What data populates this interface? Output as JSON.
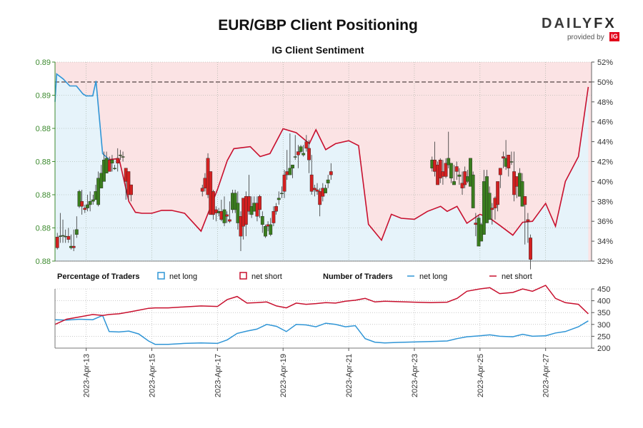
{
  "header": {
    "title": "EUR/GBP Client Positioning",
    "subtitle": "IG Client Sentiment",
    "logo_text_a": "DAILY",
    "logo_text_b": "FX",
    "logo_by": "provided by",
    "logo_ig": "IG"
  },
  "legend": {
    "pct_heading": "Percentage of Traders",
    "pct_long": "net long",
    "pct_short": "net short",
    "num_heading": "Number of Traders",
    "num_long": "net long",
    "num_short": "net short"
  },
  "colors": {
    "long_line": "#2f95d6",
    "short_line": "#c8102e",
    "long_fill": "#e6f3fa",
    "short_fill": "#fbe3e4",
    "bull_candle": "#3a7d1e",
    "bear_candle": "#d32020",
    "price_axis": "#3c8a2e",
    "dashed_line": "#7a6a6a"
  },
  "chart_data": [
    {
      "type": "candlestick",
      "title": "EUR/GBP Client Positioning",
      "subtitle": "IG Client Sentiment",
      "x_ticks": [
        "2023-Apr-13",
        "2023-Apr-15",
        "2023-Apr-17",
        "2023-Apr-19",
        "2023-Apr-21",
        "2023-Apr-23",
        "2023-Apr-25",
        "2023-Apr-27"
      ],
      "price_axis_left": {
        "ticks": [
          "0.88",
          "0.88",
          "0.88",
          "0.88",
          "0.88",
          "0.89",
          "0.89"
        ],
        "range": [
          0.8736,
          0.8856
        ]
      },
      "percent_axis_right": {
        "ticks": [
          "32%",
          "34%",
          "36%",
          "38%",
          "40%",
          "42%",
          "44%",
          "46%",
          "48%",
          "50%",
          "52%"
        ],
        "range": [
          32,
          52
        ],
        "reference_line": 50
      },
      "candles": {
        "days": [
          12.12,
          12.21,
          12.29,
          12.37,
          12.46,
          12.54,
          12.62,
          12.71,
          12.79,
          12.87,
          12.96,
          13.04,
          13.12,
          13.21,
          13.29,
          13.37,
          13.46,
          13.54,
          13.62,
          13.71,
          13.79,
          13.87,
          13.96,
          14.04,
          14.12,
          14.21,
          14.29,
          14.37,
          16.54,
          16.62,
          16.71,
          16.79,
          16.87,
          16.96,
          17.04,
          17.12,
          17.21,
          17.29,
          17.37,
          17.46,
          17.54,
          17.62,
          17.71,
          17.79,
          17.87,
          17.96,
          18.04,
          18.12,
          18.21,
          18.29,
          18.37,
          18.46,
          18.54,
          18.62,
          18.71,
          18.79,
          18.87,
          18.96,
          19.04,
          19.12,
          19.21,
          19.29,
          19.37,
          19.46,
          19.54,
          19.62,
          19.71,
          19.79,
          19.87,
          19.96,
          20.04,
          20.12,
          20.21,
          20.29,
          20.37,
          20.46,
          23.54,
          23.62,
          23.71,
          23.79,
          23.87,
          23.96,
          24.04,
          24.12,
          24.21,
          24.29,
          24.37,
          24.46,
          24.54,
          24.62,
          24.71,
          24.79,
          24.87,
          24.96,
          25.04,
          25.12,
          25.21,
          25.29,
          25.37,
          25.46,
          25.54,
          25.62,
          25.71,
          25.79,
          25.87,
          25.96,
          26.04,
          26.12,
          26.21,
          26.29,
          26.37,
          26.46,
          26.54
        ],
        "open": [
          0.87505,
          0.87512,
          0.87515,
          0.8751,
          0.8751,
          0.8744,
          0.8745,
          0.8752,
          0.8769,
          0.8772,
          0.8768,
          0.8768,
          0.877,
          0.8772,
          0.8773,
          0.877,
          0.878,
          0.8784,
          0.8789,
          0.8797,
          0.8795,
          0.8792,
          0.8798,
          0.88,
          0.8799,
          0.8792,
          0.879,
          0.8782,
          0.878,
          0.8786,
          0.8798,
          0.879,
          0.8778,
          0.8767,
          0.8765,
          0.8766,
          0.8759,
          0.8764,
          0.8761,
          0.8767,
          0.8767,
          0.8759,
          0.8763,
          0.8774,
          0.8775,
          0.8775,
          0.8764,
          0.8766,
          0.8771,
          0.8775,
          0.8758,
          0.8751,
          0.8758,
          0.8752,
          0.8766,
          0.8769,
          0.8773,
          0.8777,
          0.8788,
          0.879,
          0.8788,
          0.8792,
          0.8799,
          0.8802,
          0.8802,
          0.88,
          0.8808,
          0.8804,
          0.8788,
          0.878,
          0.8779,
          0.8778,
          0.878,
          0.8777,
          0.8783,
          0.879,
          0.8792,
          0.8797,
          0.8794,
          0.8797,
          0.879,
          0.8795,
          0.8794,
          0.8786,
          0.8782,
          0.8793,
          0.8787,
          0.8783,
          0.879,
          0.8784,
          0.8781,
          0.8768,
          0.8759,
          0.8745,
          0.8748,
          0.8752,
          0.8759,
          0.8761,
          0.8768,
          0.8774,
          0.8784,
          0.8792,
          0.8799,
          0.8793,
          0.88,
          0.8796,
          0.879,
          0.8787,
          0.8775,
          0.8769,
          0.8775,
          0.8761,
          0.875
        ],
        "close": [
          0.8744,
          0.87512,
          0.87515,
          0.8751,
          0.8749,
          0.8745,
          0.8744,
          0.8755,
          0.8778,
          0.8769,
          0.8767,
          0.877,
          0.8772,
          0.8773,
          0.8778,
          0.8786,
          0.8789,
          0.8797,
          0.8798,
          0.879,
          0.8797,
          0.8792,
          0.8795,
          0.88,
          0.8799,
          0.8784,
          0.8776,
          0.8776,
          0.8778,
          0.878,
          0.8776,
          0.8764,
          0.8764,
          0.8765,
          0.8766,
          0.8761,
          0.8767,
          0.8763,
          0.876,
          0.8777,
          0.8777,
          0.8771,
          0.8751,
          0.8757,
          0.8758,
          0.8766,
          0.8769,
          0.8771,
          0.8763,
          0.8767,
          0.8763,
          0.8757,
          0.8757,
          0.8758,
          0.8759,
          0.8766,
          0.8774,
          0.8777,
          0.8778,
          0.8788,
          0.8792,
          0.8794,
          0.8799,
          0.88,
          0.8805,
          0.8801,
          0.8804,
          0.8797,
          0.8778,
          0.8779,
          0.8778,
          0.877,
          0.8775,
          0.878,
          0.8785,
          0.8788,
          0.8797,
          0.879,
          0.8782,
          0.8786,
          0.8787,
          0.8787,
          0.8798,
          0.8795,
          0.8784,
          0.879,
          0.8788,
          0.878,
          0.8782,
          0.8787,
          0.8798,
          0.8788,
          0.8758,
          0.8762,
          0.8758,
          0.8784,
          0.8787,
          0.8777,
          0.8767,
          0.8768,
          0.877,
          0.8788,
          0.8798,
          0.8798,
          0.8792,
          0.8796,
          0.8776,
          0.8781,
          0.8789,
          0.8784,
          0.877,
          0.876,
          0.8737
        ],
        "high": [
          0.8753,
          0.8765,
          0.8761,
          0.8755,
          0.8756,
          0.8752,
          0.8755,
          0.8763,
          0.8779,
          0.8779,
          0.877,
          0.8776,
          0.8778,
          0.8776,
          0.8782,
          0.879,
          0.8794,
          0.8802,
          0.8802,
          0.8799,
          0.88,
          0.8794,
          0.8804,
          0.8803,
          0.8802,
          0.8787,
          0.8788,
          0.8778,
          0.8782,
          0.8789,
          0.8801,
          0.879,
          0.8779,
          0.8769,
          0.8768,
          0.8773,
          0.8775,
          0.8766,
          0.8772,
          0.8779,
          0.8779,
          0.8778,
          0.8766,
          0.8768,
          0.8778,
          0.8788,
          0.8775,
          0.8775,
          0.8775,
          0.8776,
          0.8766,
          0.8758,
          0.876,
          0.8762,
          0.8769,
          0.8771,
          0.8778,
          0.8781,
          0.8791,
          0.8803,
          0.8813,
          0.8794,
          0.8812,
          0.8806,
          0.8806,
          0.8806,
          0.8812,
          0.8809,
          0.88,
          0.8782,
          0.8783,
          0.878,
          0.8783,
          0.8782,
          0.8788,
          0.8795,
          0.8799,
          0.8808,
          0.8796,
          0.8798,
          0.8797,
          0.8798,
          0.8814,
          0.8795,
          0.8794,
          0.8796,
          0.8792,
          0.879,
          0.8793,
          0.8791,
          0.8798,
          0.879,
          0.8765,
          0.8764,
          0.8759,
          0.8791,
          0.8791,
          0.8781,
          0.8771,
          0.8775,
          0.8782,
          0.879,
          0.8802,
          0.8809,
          0.88,
          0.8802,
          0.8802,
          0.8785,
          0.8792,
          0.8789,
          0.8773,
          0.8765,
          0.8752
        ],
        "low": [
          0.8743,
          0.8747,
          0.8747,
          0.8747,
          0.8747,
          0.8743,
          0.8742,
          0.875,
          0.8768,
          0.8764,
          0.8765,
          0.8766,
          0.8766,
          0.877,
          0.8775,
          0.8769,
          0.8787,
          0.8784,
          0.8792,
          0.879,
          0.879,
          0.8791,
          0.879,
          0.8797,
          0.8796,
          0.8773,
          0.8773,
          0.8772,
          0.8775,
          0.8778,
          0.8774,
          0.8764,
          0.8761,
          0.876,
          0.8763,
          0.876,
          0.8757,
          0.8759,
          0.8759,
          0.8765,
          0.8765,
          0.8755,
          0.8742,
          0.8749,
          0.8751,
          0.8764,
          0.8762,
          0.8766,
          0.876,
          0.8762,
          0.8753,
          0.875,
          0.8754,
          0.8751,
          0.8757,
          0.8764,
          0.877,
          0.8774,
          0.8774,
          0.8785,
          0.8788,
          0.8786,
          0.8797,
          0.8792,
          0.8801,
          0.8799,
          0.8802,
          0.8789,
          0.8776,
          0.8775,
          0.8776,
          0.8763,
          0.8772,
          0.8778,
          0.878,
          0.8785,
          0.879,
          0.8787,
          0.8782,
          0.8783,
          0.8782,
          0.8786,
          0.8792,
          0.8783,
          0.8782,
          0.8785,
          0.8782,
          0.8776,
          0.878,
          0.8783,
          0.8787,
          0.8787,
          0.8751,
          0.8752,
          0.8755,
          0.8778,
          0.8782,
          0.8768,
          0.8758,
          0.8761,
          0.8766,
          0.878,
          0.8792,
          0.8791,
          0.8787,
          0.8794,
          0.8772,
          0.8774,
          0.8776,
          0.8772,
          0.8746,
          0.8747,
          0.8731
        ]
      },
      "sentiment_pct": {
        "days": [
          12.0,
          12.1,
          12.3,
          12.5,
          12.7,
          12.9,
          13.0,
          13.2,
          13.3,
          13.5,
          13.7,
          14.0,
          14.3,
          14.5,
          14.7,
          15.0,
          15.3,
          15.6,
          16.0,
          16.5,
          17.0,
          17.3,
          17.5,
          18.0,
          18.3,
          18.6,
          19.0,
          19.4,
          19.8,
          20.0,
          20.3,
          20.6,
          21.0,
          21.3,
          21.6,
          22.0,
          22.3,
          22.6,
          23.0,
          23.4,
          23.8,
          24.0,
          24.3,
          24.6,
          25.0,
          25.3,
          25.6,
          26.0,
          26.3,
          26.6,
          27.0,
          27.3,
          27.6,
          28.0,
          28.3
        ],
        "net_long": [
          48.0,
          50.8,
          50.3,
          49.6,
          49.6,
          48.8,
          48.6,
          48.6,
          50.1,
          42.8,
          42.2,
          42.3,
          38.0,
          36.9,
          36.8,
          36.8,
          37.1,
          37.1,
          36.8,
          35.0,
          39.2,
          42.1,
          43.3,
          43.5,
          42.5,
          42.8,
          45.3,
          44.9,
          43.8,
          45.2,
          43.2,
          43.8,
          44.1,
          43.6,
          35.7,
          34.1,
          36.7,
          36.3,
          36.2,
          37.0,
          37.5,
          37.0,
          37.5,
          35.8,
          36.7,
          36.3,
          35.6,
          34.6,
          35.9,
          36.0,
          37.8,
          35.5,
          40.0,
          42.5,
          49.5
        ],
        "net_short": [
          52.0,
          49.2,
          49.7,
          50.4,
          50.4,
          51.2,
          51.4,
          51.4,
          49.9,
          57.2,
          57.8,
          57.7,
          62.0,
          63.1,
          63.2,
          63.2,
          62.9,
          62.9,
          63.2,
          65.0,
          60.8,
          57.9,
          56.7,
          56.5,
          57.5,
          57.2,
          54.7,
          55.1,
          56.2,
          54.8,
          56.8,
          56.2,
          55.9,
          56.4,
          64.3,
          65.9,
          63.3,
          63.7,
          63.8,
          63.0,
          62.5,
          63.0,
          62.5,
          64.2,
          63.3,
          63.7,
          64.4,
          65.4,
          64.1,
          64.0,
          62.2,
          64.5,
          60.0,
          57.5,
          50.5
        ]
      },
      "series": [
        {
          "name": "net long"
        },
        {
          "name": "net short"
        }
      ]
    },
    {
      "type": "line",
      "y_ticks": [
        "200",
        "250",
        "300",
        "350",
        "400",
        "450"
      ],
      "ylim": [
        200,
        450
      ],
      "series": [
        {
          "name": "net long",
          "days": [
            12.0,
            12.4,
            12.8,
            13.2,
            13.5,
            13.7,
            14.0,
            14.3,
            14.6,
            14.9,
            15.1,
            15.5,
            16.0,
            16.5,
            17.0,
            17.3,
            17.6,
            17.9,
            18.2,
            18.5,
            18.8,
            19.1,
            19.4,
            19.7,
            20.0,
            20.3,
            20.6,
            20.9,
            21.2,
            21.5,
            21.8,
            22.1,
            22.5,
            23.0,
            23.5,
            24.0,
            24.3,
            24.6,
            25.0,
            25.3,
            25.6,
            26.0,
            26.3,
            26.6,
            27.0,
            27.3,
            27.6,
            28.0,
            28.3
          ],
          "values": [
            320,
            318,
            322,
            320,
            338,
            270,
            268,
            272,
            260,
            230,
            216,
            216,
            220,
            222,
            220,
            235,
            262,
            272,
            280,
            300,
            292,
            270,
            300,
            298,
            290,
            305,
            300,
            290,
            295,
            240,
            225,
            222,
            224,
            226,
            228,
            230,
            240,
            248,
            252,
            256,
            250,
            248,
            258,
            250,
            252,
            264,
            270,
            290,
            315
          ]
        },
        {
          "name": "net short",
          "days": [
            12.0,
            12.4,
            12.8,
            13.2,
            13.5,
            13.7,
            14.0,
            14.3,
            14.6,
            14.9,
            15.1,
            15.5,
            16.0,
            16.5,
            17.0,
            17.3,
            17.6,
            17.9,
            18.2,
            18.5,
            18.8,
            19.1,
            19.4,
            19.7,
            20.0,
            20.3,
            20.6,
            20.9,
            21.2,
            21.5,
            21.8,
            22.1,
            22.5,
            23.0,
            23.5,
            24.0,
            24.3,
            24.6,
            25.0,
            25.3,
            25.6,
            26.0,
            26.3,
            26.6,
            27.0,
            27.3,
            27.6,
            28.0,
            28.3
          ],
          "values": [
            300,
            322,
            332,
            342,
            338,
            342,
            345,
            352,
            360,
            368,
            370,
            370,
            374,
            378,
            376,
            405,
            418,
            390,
            392,
            395,
            378,
            370,
            390,
            385,
            388,
            392,
            390,
            398,
            402,
            410,
            395,
            398,
            396,
            394,
            392,
            394,
            410,
            440,
            450,
            455,
            430,
            435,
            450,
            440,
            465,
            410,
            392,
            385,
            345
          ]
        }
      ]
    }
  ]
}
